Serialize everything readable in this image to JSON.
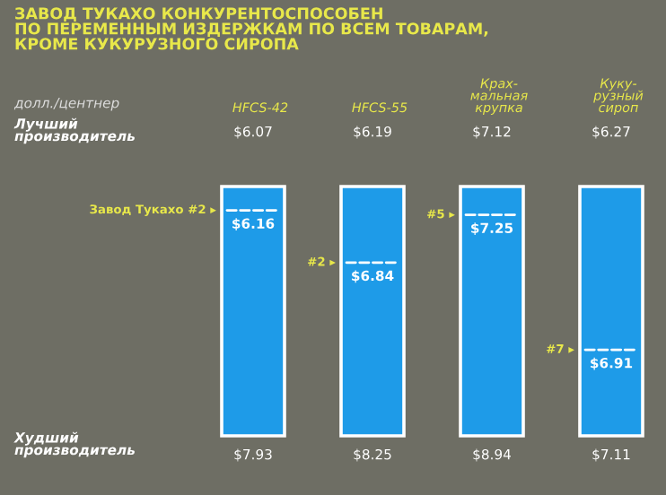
{
  "chart_data": {
    "type": "other",
    "title": "ЗАВОД ТУКАХО КОНКУРЕНТОСПОСОБЕН\nПО ПЕРЕМЕННЫМ ИЗДЕРЖКАМ ПО ВСЕМ ТОВАРАМ,\nКРОМЕ КУКУРУЗНОГО СИРОПА",
    "ylabel": "долл./центнер",
    "categories": [
      "HFCS-42",
      "HFCS-55",
      "Крах-\nмальная\nкрупка",
      "Куку-\nрузный\nсироп"
    ],
    "series": [
      {
        "name": "Лучший\nпроизводитель",
        "color": "#ffffff",
        "values": [
          6.07,
          6.19,
          7.12,
          6.27
        ],
        "value_labels": [
          "$6.07",
          "$6.19",
          "$7.12",
          "$6.27"
        ]
      },
      {
        "name": "Худший\nпроизводитель",
        "color": "#ffffff",
        "values": [
          7.93,
          8.25,
          8.94,
          7.11
        ],
        "value_labels": [
          "$7.93",
          "$8.25",
          "$8.94",
          "$7.11"
        ]
      },
      {
        "color": "#1e9be8",
        "values": [
          6.16,
          6.84,
          7.25,
          6.91
        ],
        "value_labels": [
          "$6.16",
          "$6.84",
          "$7.25",
          "$6.91"
        ]
      }
    ],
    "annotations": [
      "Завод Тукахо #2 ▸",
      "#2 ▸",
      "#5 ▸",
      "#7 ▸"
    ]
  }
}
